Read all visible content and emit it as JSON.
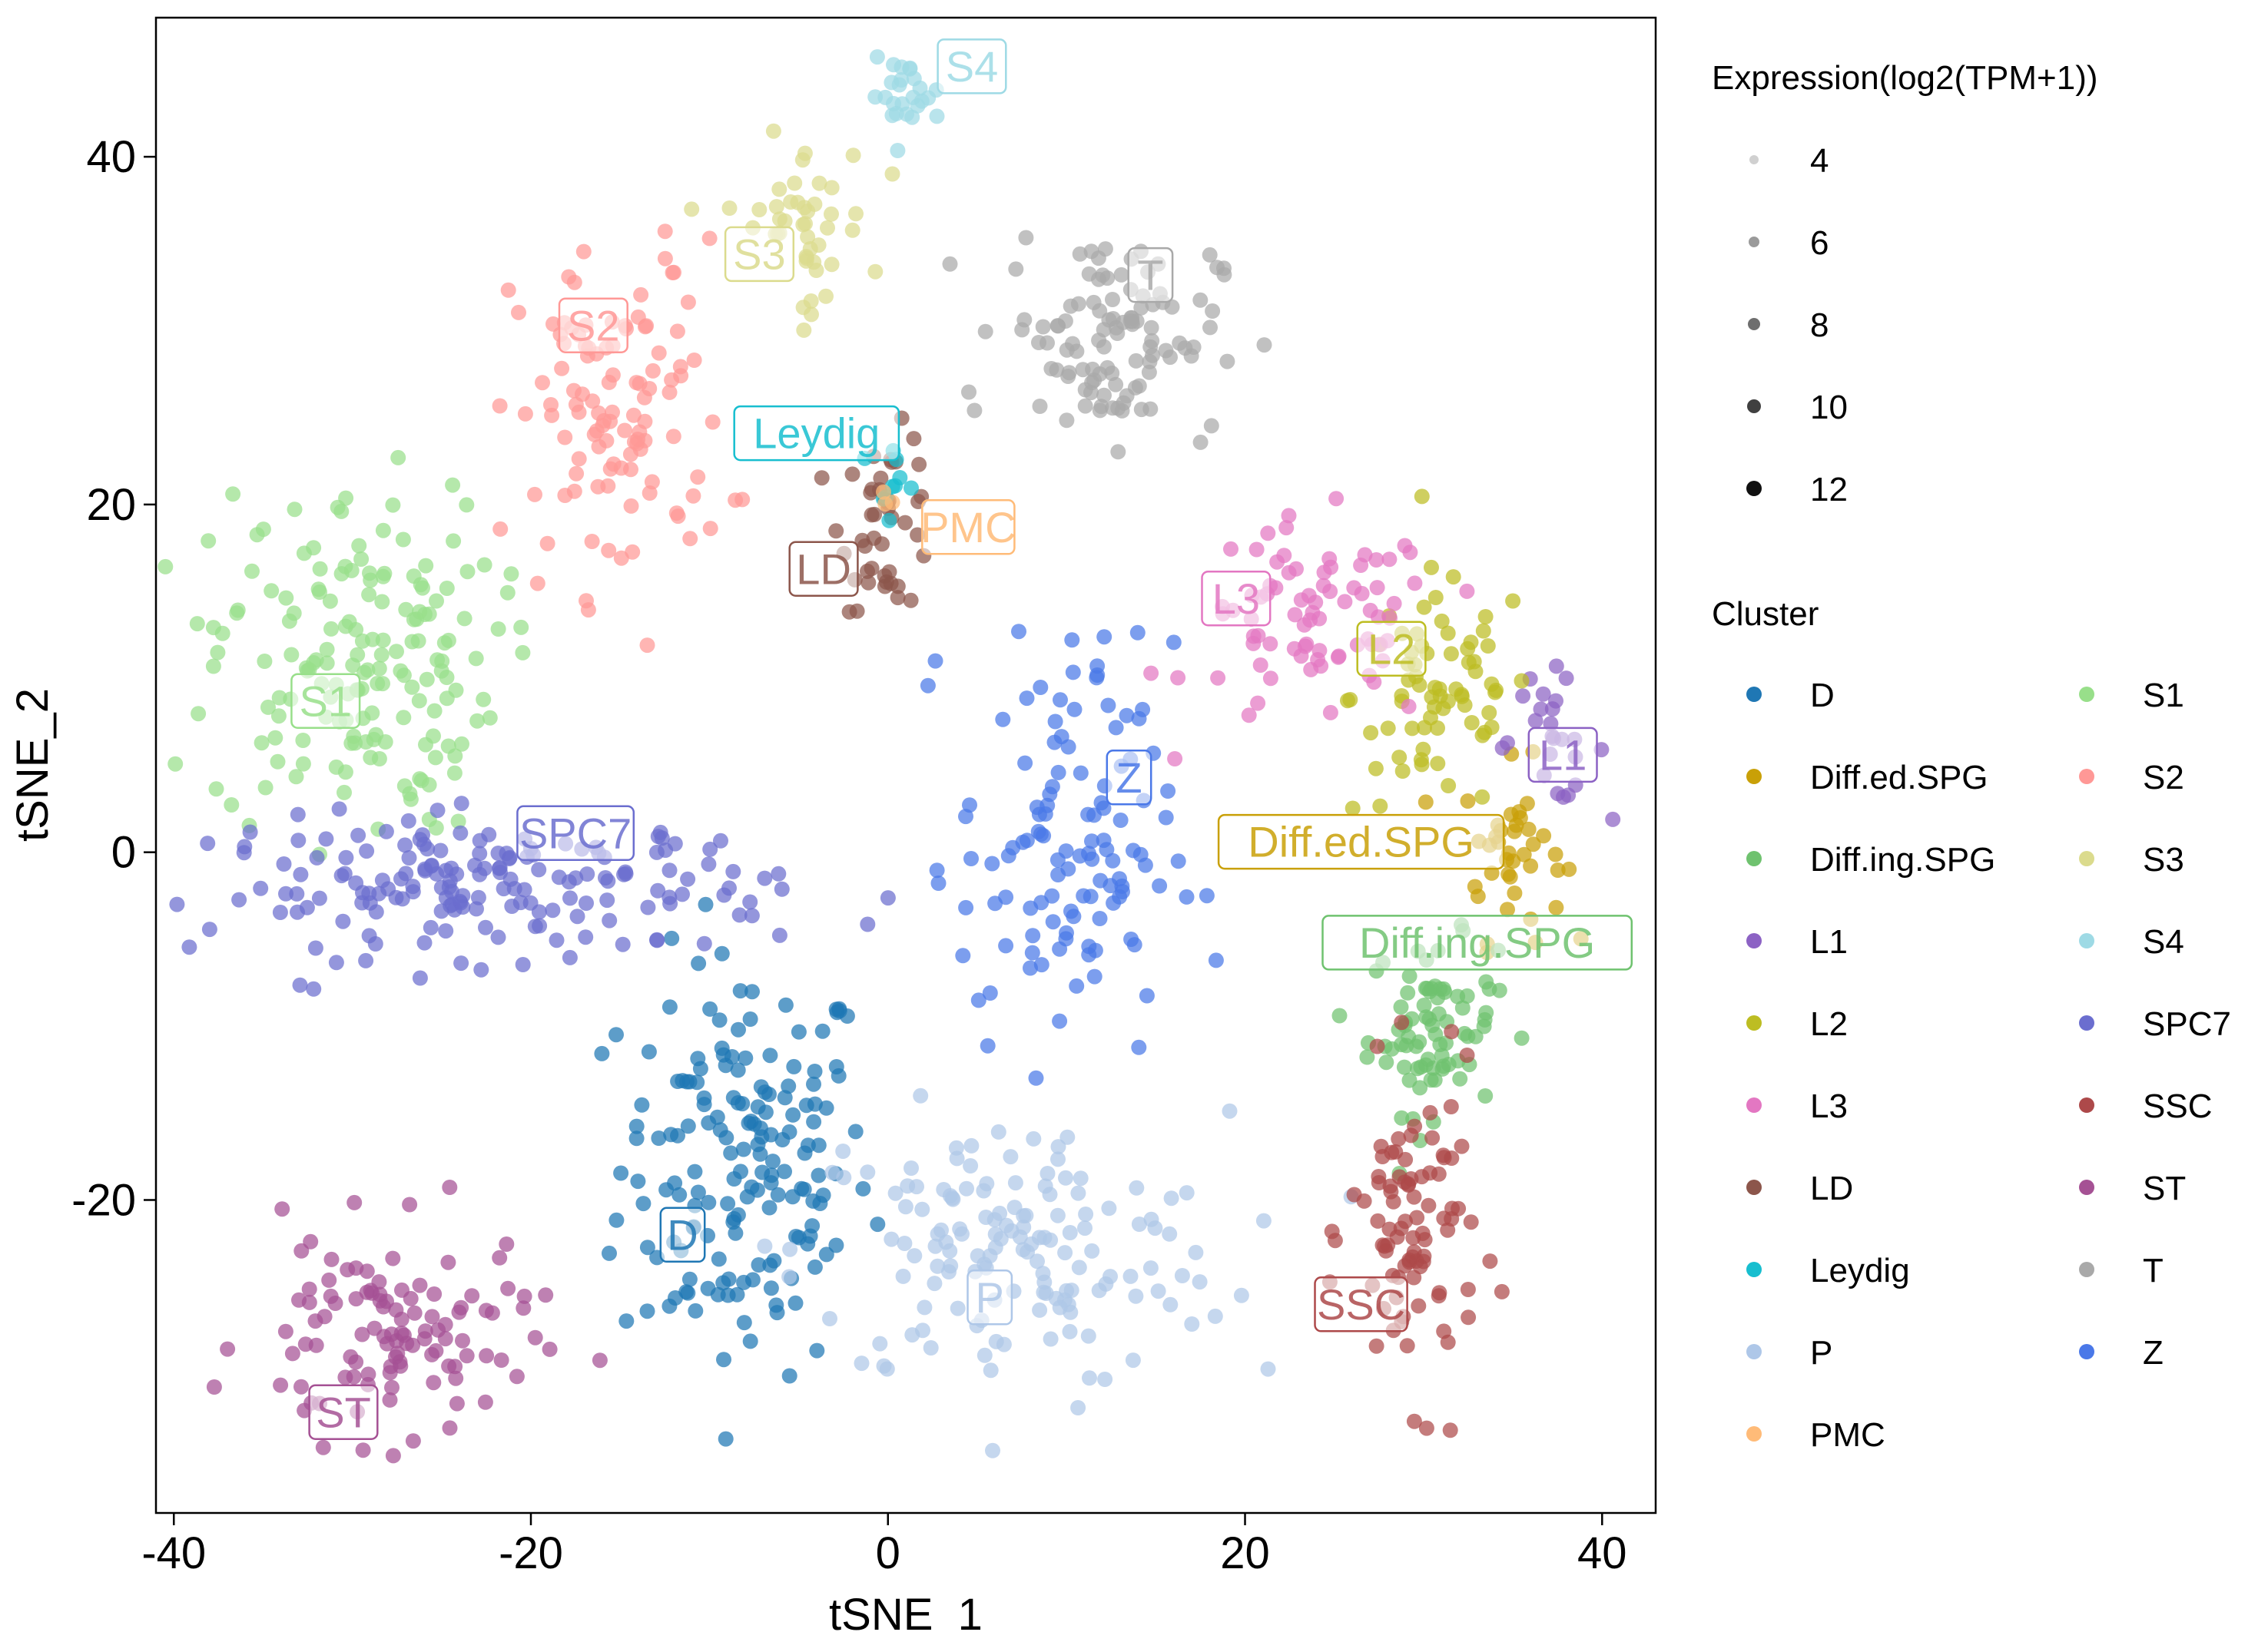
{
  "chart_data": {
    "type": "scatter",
    "title": "",
    "xlabel": "tSNE_1",
    "ylabel": "tSNE_2",
    "xlim": [
      -41,
      43
    ],
    "ylim": [
      -38,
      48
    ],
    "x_ticks": [
      -40,
      -20,
      0,
      20,
      40
    ],
    "y_ticks": [
      -20,
      0,
      20,
      40
    ],
    "grid": false,
    "legend_position": "right",
    "size_legend": {
      "title": "Expression(log2(TPM+1))",
      "values": [
        "4",
        "6",
        "8",
        "10",
        "12"
      ],
      "colors": [
        "#d0d0d0",
        "#9a9a9a",
        "#6e6e6e",
        "#404040",
        "#101010"
      ]
    },
    "legend_title": "Cluster",
    "clusters": [
      {
        "name": "D",
        "color": "#1f77b4",
        "label_pos": [
          -11.5,
          -22
        ],
        "center": [
          -8,
          -18
        ],
        "spread": [
          3.5,
          6
        ],
        "n": 170
      },
      {
        "name": "Diff.ed.SPG",
        "color": "#c9a007",
        "label_pos": [
          26.5,
          0.6
        ],
        "center": [
          35,
          0
        ],
        "spread": [
          1.4,
          2.5
        ],
        "n": 40
      },
      {
        "name": "Diff.ing.SPG",
        "color": "#6fc26f",
        "label_pos": [
          33,
          -5.2
        ],
        "center": [
          30.5,
          -10
        ],
        "spread": [
          1.8,
          2.5
        ],
        "n": 80
      },
      {
        "name": "L1",
        "color": "#8c62c4",
        "label_pos": [
          37.8,
          5.6
        ],
        "center": [
          37,
          6.5
        ],
        "spread": [
          1.6,
          1.8
        ],
        "n": 25
      },
      {
        "name": "L2",
        "color": "#bdbd22",
        "label_pos": [
          28.2,
          11.7
        ],
        "center": [
          31,
          9
        ],
        "spread": [
          2.5,
          3.5
        ],
        "n": 70
      },
      {
        "name": "L3",
        "color": "#e377c2",
        "label_pos": [
          19.5,
          14.6
        ],
        "center": [
          24,
          13
        ],
        "spread": [
          3.5,
          3
        ],
        "n": 80
      },
      {
        "name": "LD",
        "color": "#8c564b",
        "label_pos": [
          -3.6,
          16.3
        ],
        "center": [
          0,
          19
        ],
        "spread": [
          1.3,
          2.5
        ],
        "n": 45
      },
      {
        "name": "Leydig",
        "color": "#17becf",
        "label_pos": [
          -4,
          24.1
        ],
        "center": [
          0,
          21.5
        ],
        "spread": [
          1,
          1
        ],
        "n": 10
      },
      {
        "name": "P",
        "color": "#aec7e8",
        "label_pos": [
          5.7,
          -25.6
        ],
        "center": [
          7,
          -23
        ],
        "spread": [
          6,
          4
        ],
        "n": 150
      },
      {
        "name": "PMC",
        "color": "#ffbb78",
        "label_pos": [
          4.5,
          18.7
        ],
        "center": [
          0,
          20
        ],
        "spread": [
          0.6,
          0.6
        ],
        "n": 3
      },
      {
        "name": "S1",
        "color": "#98df8a",
        "label_pos": [
          -31.5,
          8.7
        ],
        "center": [
          -30,
          11
        ],
        "spread": [
          4,
          5
        ],
        "n": 170
      },
      {
        "name": "S2",
        "color": "#ff9896",
        "label_pos": [
          -16.5,
          30.3
        ],
        "center": [
          -15,
          25
        ],
        "spread": [
          3,
          5
        ],
        "n": 110
      },
      {
        "name": "S3",
        "color": "#dbdb8d",
        "label_pos": [
          -7.2,
          34.4
        ],
        "center": [
          -5,
          36
        ],
        "spread": [
          2,
          2.5
        ],
        "n": 45
      },
      {
        "name": "S4",
        "color": "#9edae5",
        "label_pos": [
          4.7,
          45.2
        ],
        "center": [
          1,
          43.5
        ],
        "spread": [
          1,
          1
        ],
        "n": 25
      },
      {
        "name": "SPC7",
        "color": "#6b6ecf",
        "label_pos": [
          -17.5,
          1.1
        ],
        "center": [
          -22,
          -2
        ],
        "spread": [
          8,
          2
        ],
        "n": 180
      },
      {
        "name": "SSC",
        "color": "#ad494a",
        "label_pos": [
          26.5,
          -26
        ],
        "center": [
          29.5,
          -22
        ],
        "spread": [
          1.8,
          4.5
        ],
        "n": 90
      },
      {
        "name": "ST",
        "color": "#a55194",
        "label_pos": [
          -30.5,
          -32.2
        ],
        "center": [
          -28,
          -28
        ],
        "spread": [
          4,
          3
        ],
        "n": 110
      },
      {
        "name": "T",
        "color": "#a9a9a9",
        "label_pos": [
          14.7,
          33.2
        ],
        "center": [
          12.5,
          30
        ],
        "spread": [
          3,
          3
        ],
        "n": 110
      },
      {
        "name": "Z",
        "color": "#4a78e8",
        "label_pos": [
          13.5,
          4.3
        ],
        "center": [
          10,
          0
        ],
        "spread": [
          3,
          6
        ],
        "n": 120
      }
    ]
  }
}
